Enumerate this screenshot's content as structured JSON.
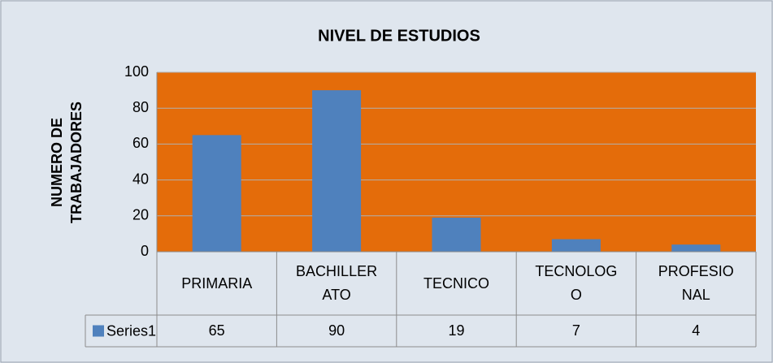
{
  "chart_data": {
    "type": "bar",
    "title": "NIVEL DE ESTUDIOS",
    "y_label": "NUMERO DE TRABAJADORES",
    "categories": [
      "PRIMARIA",
      "BACHILLERATO",
      "TECNICO",
      "TECNOLOGO",
      "PROFESIONAL"
    ],
    "series": [
      {
        "name": "Series1",
        "color": "#4f81bd",
        "values": [
          65,
          90,
          19,
          7,
          4
        ]
      }
    ],
    "plot_background": "#e46c0a",
    "ylim": [
      0,
      100
    ],
    "yticks": [
      0,
      20,
      40,
      60,
      80,
      100
    ],
    "grid": true,
    "data_table": true
  }
}
